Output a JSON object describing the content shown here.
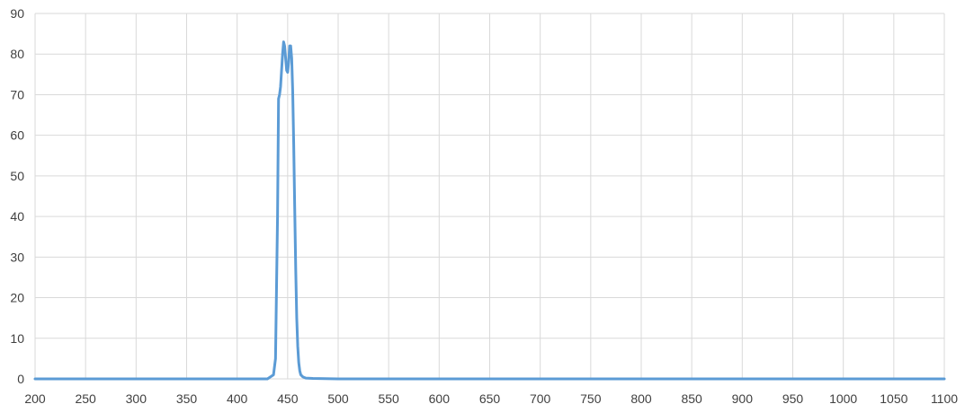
{
  "chart_data": {
    "type": "line",
    "title": "",
    "xlabel": "",
    "ylabel": "",
    "xlim": [
      200,
      1100
    ],
    "ylim": [
      0,
      90
    ],
    "x_ticks": [
      "200",
      "250",
      "300",
      "350",
      "400",
      "450",
      "500",
      "550",
      "600",
      "650",
      "700",
      "750",
      "800",
      "850",
      "900",
      "950",
      "1000",
      "1050",
      "1100"
    ],
    "y_ticks": [
      "0",
      "10",
      "20",
      "30",
      "40",
      "50",
      "60",
      "70",
      "80",
      "90"
    ],
    "grid": true,
    "legend": "none",
    "series": [
      {
        "color": "#5b9bd5",
        "x": [
          200,
          430,
          436,
          438,
          440,
          441,
          442,
          443,
          444,
          445,
          446,
          447,
          448,
          449,
          450,
          451,
          452,
          453,
          454,
          455,
          456,
          457,
          458,
          459,
          460,
          461,
          462,
          463,
          465,
          468,
          475,
          500,
          1100
        ],
        "y": [
          0,
          0,
          1,
          5,
          40,
          69,
          70,
          72,
          76,
          80,
          83,
          82,
          79,
          76,
          75.5,
          78,
          82,
          82,
          79,
          71,
          58,
          42,
          27,
          15,
          8,
          4,
          2,
          1,
          0.5,
          0.2,
          0.1,
          0,
          0
        ]
      }
    ]
  }
}
